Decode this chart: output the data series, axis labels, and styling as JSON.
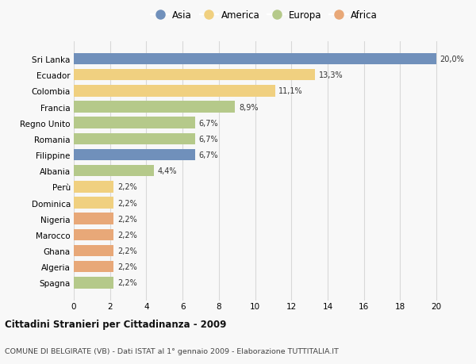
{
  "countries": [
    "Sri Lanka",
    "Ecuador",
    "Colombia",
    "Francia",
    "Regno Unito",
    "Romania",
    "Filippine",
    "Albania",
    "Perù",
    "Dominica",
    "Nigeria",
    "Marocco",
    "Ghana",
    "Algeria",
    "Spagna"
  ],
  "values": [
    20.0,
    13.3,
    11.1,
    8.9,
    6.7,
    6.7,
    6.7,
    4.4,
    2.2,
    2.2,
    2.2,
    2.2,
    2.2,
    2.2,
    2.2
  ],
  "labels": [
    "20,0%",
    "13,3%",
    "11,1%",
    "8,9%",
    "6,7%",
    "6,7%",
    "6,7%",
    "4,4%",
    "2,2%",
    "2,2%",
    "2,2%",
    "2,2%",
    "2,2%",
    "2,2%",
    "2,2%"
  ],
  "continents": [
    "Asia",
    "America",
    "America",
    "Europa",
    "Europa",
    "Europa",
    "Asia",
    "Europa",
    "America",
    "America",
    "Africa",
    "Africa",
    "Africa",
    "Africa",
    "Europa"
  ],
  "colors": {
    "Asia": "#7090bb",
    "America": "#f0d080",
    "Europa": "#b5c98a",
    "Africa": "#e8a878"
  },
  "legend_order": [
    "Asia",
    "America",
    "Europa",
    "Africa"
  ],
  "title": "Cittadini Stranieri per Cittadinanza - 2009",
  "subtitle": "COMUNE DI BELGIRATE (VB) - Dati ISTAT al 1° gennaio 2009 - Elaborazione TUTTITALIA.IT",
  "xlim": [
    0,
    21
  ],
  "xticks": [
    0,
    2,
    4,
    6,
    8,
    10,
    12,
    14,
    16,
    18,
    20
  ],
  "bg_color": "#f8f8f8",
  "grid_color": "#d8d8d8"
}
